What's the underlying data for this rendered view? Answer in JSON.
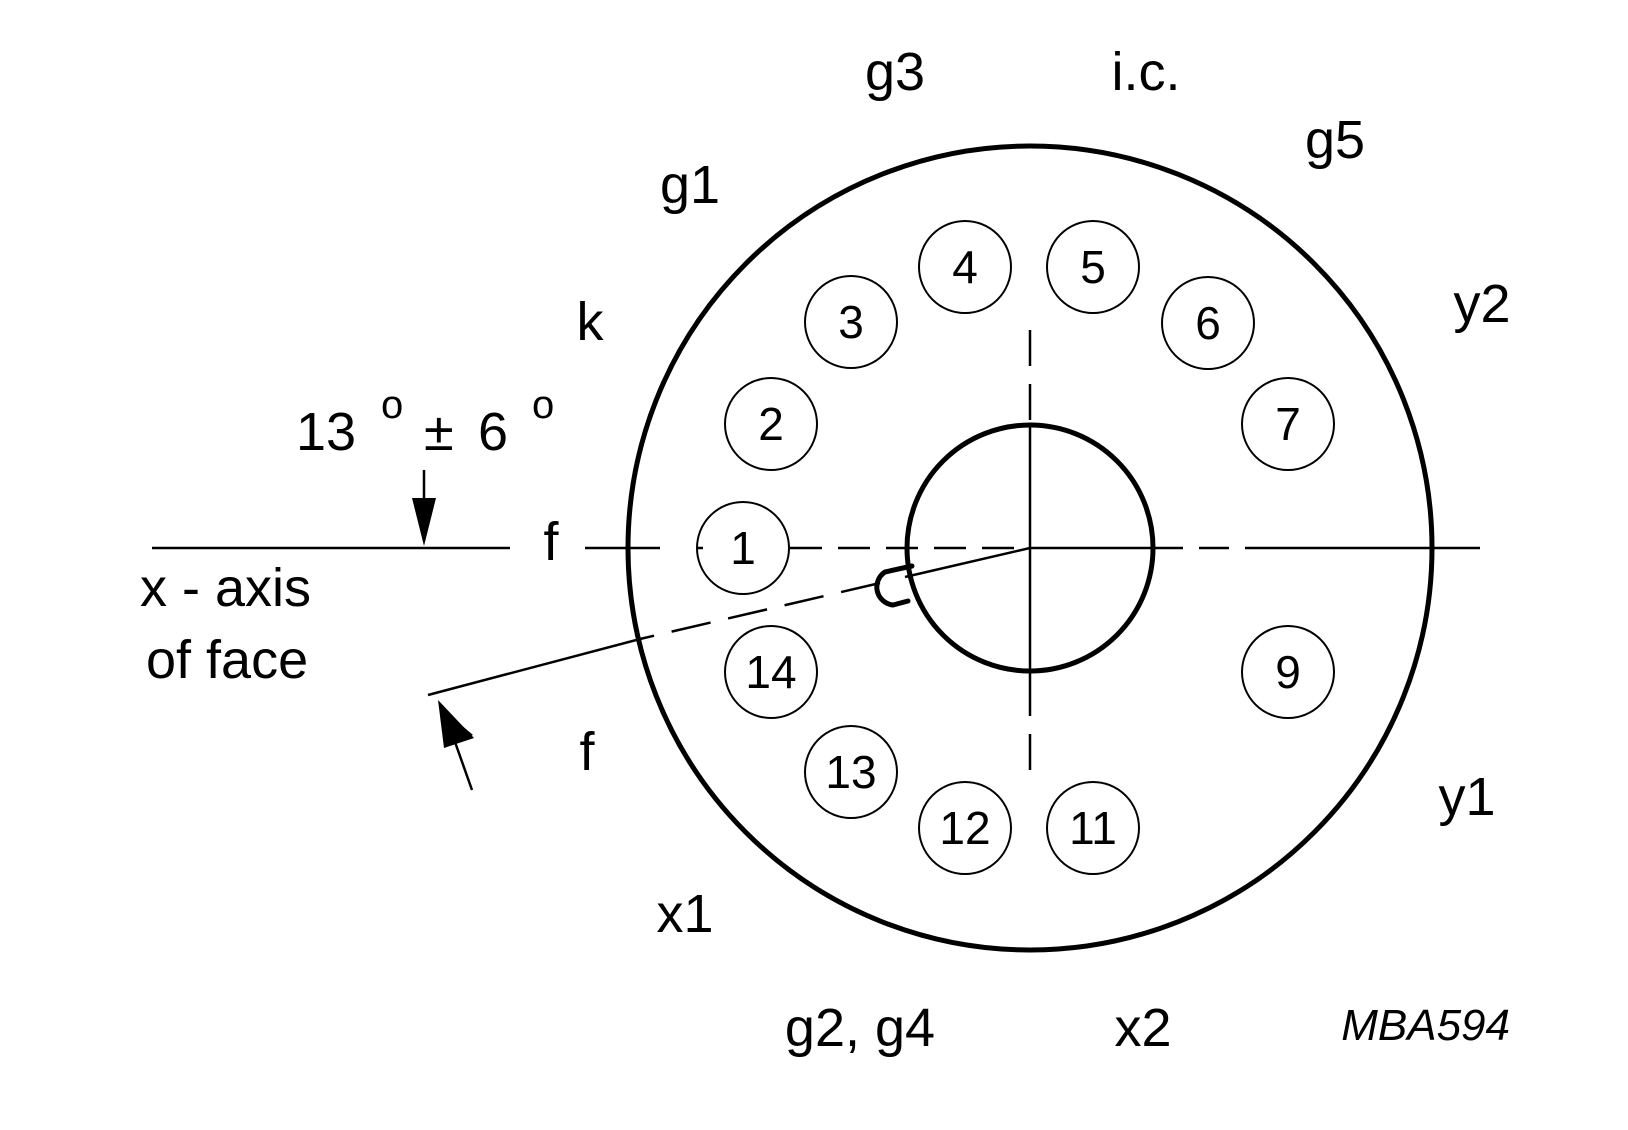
{
  "diagram": {
    "code": "MBA594",
    "labels": {
      "g1": "g1",
      "g3": "g3",
      "ic": "i.c.",
      "g5": "g5",
      "k": "k",
      "y2": "y2",
      "f_top": "f",
      "f_bottom": "f",
      "y1": "y1",
      "x1": "x1",
      "g2g4": "g2, g4",
      "x2": "x2"
    },
    "angle": {
      "value": "13",
      "degree": "o",
      "pm": "±",
      "tolerance": "6",
      "degree2": "o"
    },
    "axis_label": {
      "line1": "x - axis",
      "line2": "of face"
    },
    "pins": [
      "1",
      "2",
      "3",
      "4",
      "5",
      "6",
      "7",
      "9",
      "11",
      "12",
      "13",
      "14"
    ]
  }
}
